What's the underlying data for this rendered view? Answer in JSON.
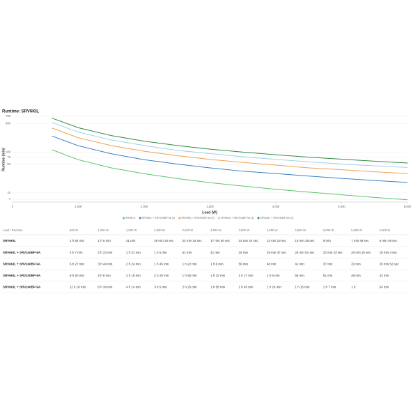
{
  "chart_data": {
    "type": "line",
    "title": "Runtime: SRV6KIL",
    "x_label": "Load (W)",
    "y_label": "Runtime (min)",
    "log_y": true,
    "grid": true,
    "x": [
      600,
      1000,
      1500,
      2000,
      2500,
      3000,
      3500,
      4000,
      4500,
      5000,
      5500,
      6000
    ],
    "xlim": [
      0,
      6000
    ],
    "xticks": [
      0,
      {
        "value": 1000,
        "label": "1,000"
      },
      {
        "value": 2000,
        "label": "2,000"
      },
      {
        "value": 3000,
        "label": "3,000"
      },
      {
        "value": 4000,
        "label": "4,000"
      },
      {
        "value": 5000,
        "label": "5,000"
      },
      {
        "value": 6000,
        "label": "6,000"
      }
    ],
    "ylim": [
      6,
      750
    ],
    "yticks": [
      7,
      10,
      50,
      75,
      100,
      500,
      750
    ],
    "series": [
      {
        "name": "SRV6KIL",
        "color": "#5cc46c",
        "values": [
          114,
          65,
          41,
          29.6,
          22.6,
          17.8,
          14.7,
          12.3,
          10.5,
          9,
          7.8,
          6.8
        ]
      },
      {
        "name": "SRV6KIL + SRV240BP-9A (1)",
        "color": "#3a7fc1",
        "values": [
          247,
          143,
          91,
          65,
          51,
          41,
          34,
          29.8,
          25.9,
          22.7,
          20.2,
          18.1
        ]
      },
      {
        "name": "SRV6KIL + SRV240BP-9A (2)",
        "color": "#f0a050",
        "values": [
          387,
          224,
          144,
          105,
          82,
          66,
          56,
          48,
          41,
          37,
          33,
          29.9
        ]
      },
      {
        "name": "SRV6KIL + SRV240BP-9A (3)",
        "color": "#9fd0e8",
        "values": [
          530,
          308,
          198,
          145,
          110,
          92,
          77,
          66,
          58,
          51,
          46,
          42
        ]
      },
      {
        "name": "SRV6KIL + SRV240BP-9A (4)",
        "color": "#2e8b45",
        "values": [
          678,
          394,
          254,
          185,
          145,
          118,
          100,
          86,
          75,
          67,
          60,
          54
        ]
      }
    ]
  },
  "table": {
    "header": [
      "Load / Runtime",
      "600 W",
      "1,000 W",
      "1,500 W",
      "2,000 W",
      "2,500 W",
      "3,000 W",
      "3,500 W",
      "4,000 W",
      "4,500 W",
      "5,000 W",
      "5,500 W",
      "6,000 W"
    ],
    "rows": [
      [
        "SRV6KIL",
        "1 h 54 min",
        "1 h 5 min",
        "41 min",
        "29 min 34 sec",
        "22 min 34 sec",
        "17 min 50 sec",
        "14 min 44 sec",
        "12 min 19 sec",
        "10 min 28 sec",
        "9 min",
        "7 min 48 sec",
        "6 min 49 sec"
      ],
      [
        "SRV6KIL + SRV240BP-9A",
        "4 h 7 min",
        "2 h 23 min",
        "1 h 31 min",
        "1 h 5 min",
        "51 min",
        "41 min",
        "34 min",
        "29 min 47 sec",
        "25 min 51 sec",
        "22 min 43 sec",
        "20 min 10 sec",
        "18 min 4 sec"
      ],
      [
        "SRV6KIL + SRV240BP-9A",
        "6 h 27 min",
        "3 h 44 min",
        "2 h 24 min",
        "1 h 45 min",
        "1 h 22 min",
        "1 h 6 min",
        "56 min",
        "48 min",
        "41 min",
        "37 min",
        "33 min",
        "29 min 52 sec"
      ],
      [
        "SRV6KIL + SRV240BP-9A",
        "8 h 50 min",
        "5 h 8 min",
        "3 h 18 min",
        "2 h 25 min",
        "1 h 50 min",
        "1 h 32 min",
        "1 h 17 min",
        "1 h 6 min",
        "58 min",
        "51 min",
        "46 min",
        "42 min"
      ],
      [
        "SRV6KIL + SRV240BP-9A",
        "11 h 18 min",
        "6 h 34 min",
        "4 h 14 min",
        "3 h 5 min",
        "2 h 25 min",
        "1 h 58 min",
        "1 h 40 min",
        "1 h 26 min",
        "1 h 15 min",
        "1 h 7 min",
        "1 h",
        "54 min"
      ]
    ]
  }
}
